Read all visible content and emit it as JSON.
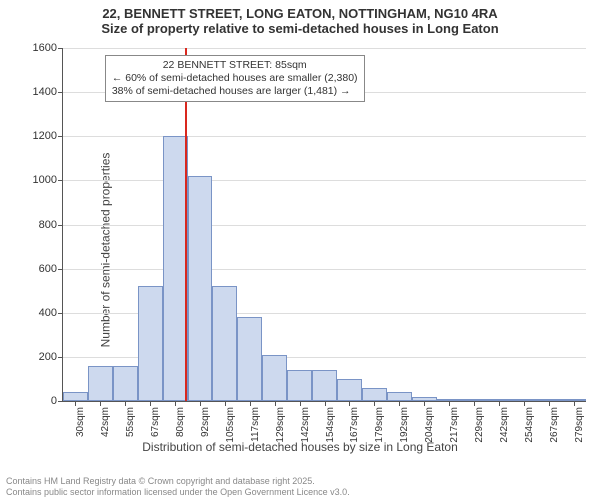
{
  "title_line1": "22, BENNETT STREET, LONG EATON, NOTTINGHAM, NG10 4RA",
  "title_line2": "Size of property relative to semi-detached houses in Long Eaton",
  "ylabel": "Number of semi-detached properties",
  "xlabel": "Distribution of semi-detached houses by size in Long Eaton",
  "footer_line1": "Contains HM Land Registry data © Crown copyright and database right 2025.",
  "footer_line2": "Contains public sector information licensed under the Open Government Licence v3.0.",
  "chart": {
    "type": "histogram",
    "ylim": [
      0,
      1600
    ],
    "ytick_step": 200,
    "y_gridlines": [
      0,
      200,
      400,
      600,
      800,
      1000,
      1200,
      1400,
      1600
    ],
    "background_color": "#ffffff",
    "grid_color": "#dddddd",
    "axis_color": "#555555",
    "tick_fontsize": 11,
    "xtick_fontsize": 10,
    "label_fontsize": 12,
    "title_fontsize": 13,
    "bar_fill": "#cdd9ee",
    "bar_border": "#7a94c6",
    "bar_width_ratio": 1.0,
    "x_categories": [
      "30sqm",
      "42sqm",
      "55sqm",
      "67sqm",
      "80sqm",
      "92sqm",
      "105sqm",
      "117sqm",
      "129sqm",
      "142sqm",
      "154sqm",
      "167sqm",
      "179sqm",
      "192sqm",
      "204sqm",
      "217sqm",
      "229sqm",
      "242sqm",
      "254sqm",
      "267sqm",
      "279sqm"
    ],
    "values": [
      40,
      160,
      160,
      520,
      1200,
      1020,
      520,
      380,
      210,
      140,
      140,
      100,
      60,
      40,
      20,
      10,
      6,
      5,
      5,
      4,
      3
    ],
    "marker": {
      "x_value": 85,
      "x_min": 30,
      "x_step": 12.45,
      "color": "#d9281e",
      "label_title": "22 BENNETT STREET: 85sqm",
      "label_left": "← 60% of semi-detached houses are smaller (2,380)",
      "label_right": "38% of semi-detached houses are larger (1,481) →"
    },
    "annotation_box": {
      "top_pct": 2,
      "left_pct": 8,
      "border_color": "#888888",
      "background": "#ffffff",
      "fontsize": 10.5
    }
  }
}
